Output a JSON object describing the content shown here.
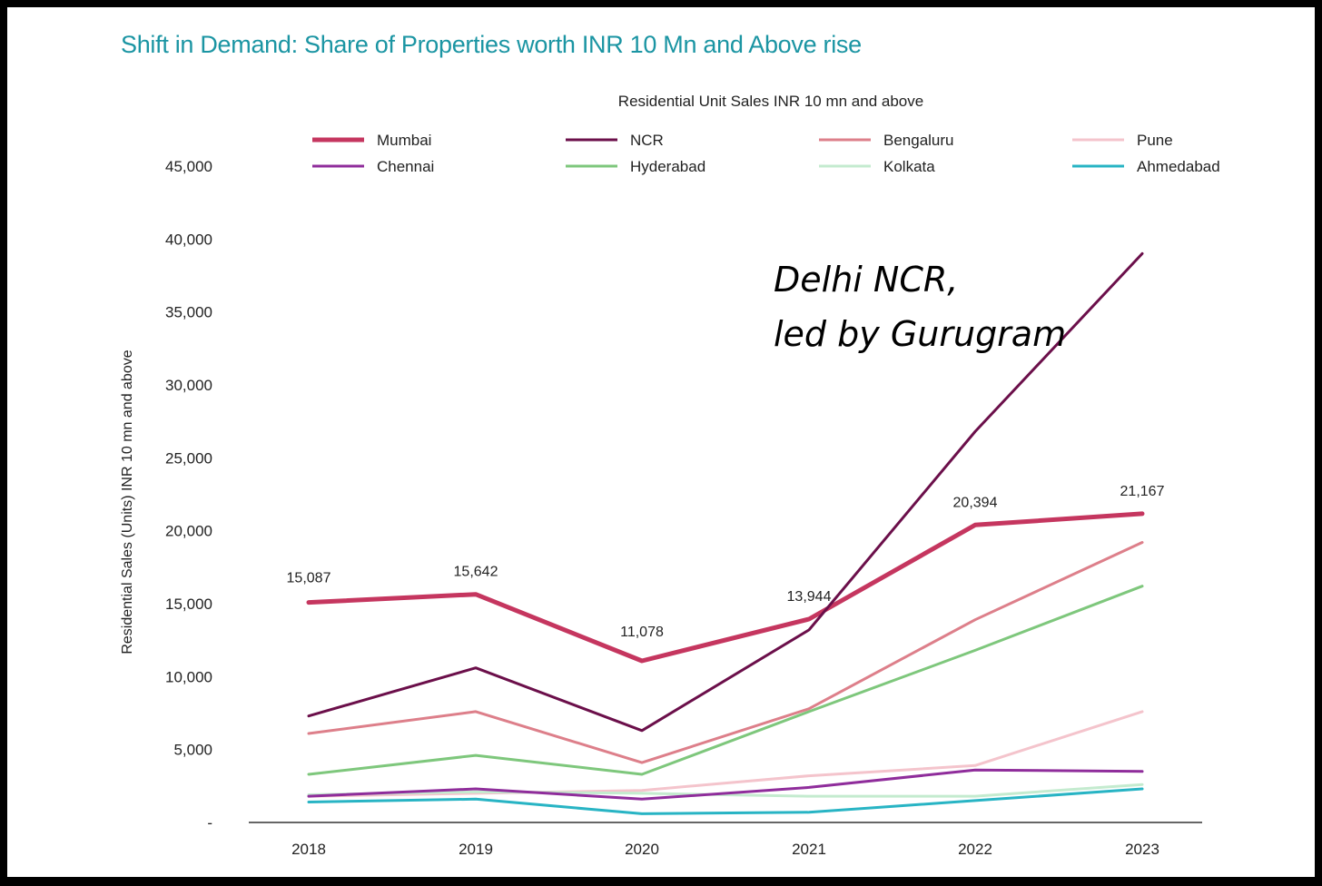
{
  "title": "Shift in Demand: Share of Properties worth INR 10 Mn and Above rise",
  "annotation": [
    "Delhi NCR,",
    "led by Gurugram"
  ],
  "chart_data": {
    "type": "line",
    "title": "Residential Unit Sales INR 10 mn and above",
    "ylabel": "Residential Sales (Units) INR 10 mn and above",
    "xlabel": "",
    "categories": [
      "2018",
      "2019",
      "2020",
      "2021",
      "2022",
      "2023"
    ],
    "ylim": [
      0,
      45000
    ],
    "yticks": [
      0,
      5000,
      10000,
      15000,
      20000,
      25000,
      30000,
      35000,
      40000,
      45000
    ],
    "ytick_labels": [
      "-",
      "5,000",
      "10,000",
      "15,000",
      "20,000",
      "25,000",
      "30,000",
      "35,000",
      "40,000",
      "45,000"
    ],
    "legend_position": "top",
    "grid": false,
    "series": [
      {
        "name": "Mumbai",
        "color": "#c5365f",
        "width": 5,
        "values": [
          15087,
          15642,
          11078,
          13944,
          20394,
          21167
        ],
        "labels": [
          "15,087",
          "15,642",
          "11,078",
          "13,944",
          "20,394",
          "21,167"
        ]
      },
      {
        "name": "NCR",
        "color": "#6b0f4a",
        "width": 3,
        "values": [
          7300,
          10600,
          6300,
          13200,
          26800,
          39000
        ]
      },
      {
        "name": "Bengaluru",
        "color": "#dd7f8a",
        "width": 3,
        "values": [
          6100,
          7600,
          4100,
          7800,
          13900,
          19200
        ]
      },
      {
        "name": "Pune",
        "color": "#f4c4cc",
        "width": 3,
        "values": [
          1800,
          2000,
          2200,
          3200,
          3900,
          7600
        ]
      },
      {
        "name": "Chennai",
        "color": "#8f2d9b",
        "width": 3,
        "values": [
          1800,
          2300,
          1600,
          2400,
          3600,
          3500
        ]
      },
      {
        "name": "Hyderabad",
        "color": "#7ec77c",
        "width": 3,
        "values": [
          3300,
          4600,
          3300,
          7600,
          11800,
          16200
        ]
      },
      {
        "name": "Kolkata",
        "color": "#c4ebcf",
        "width": 3,
        "values": [
          1900,
          2100,
          2000,
          1800,
          1800,
          2600
        ]
      },
      {
        "name": "Ahmedabad",
        "color": "#28b4c4",
        "width": 3,
        "values": [
          1400,
          1600,
          600,
          700,
          1500,
          2300
        ]
      }
    ]
  }
}
